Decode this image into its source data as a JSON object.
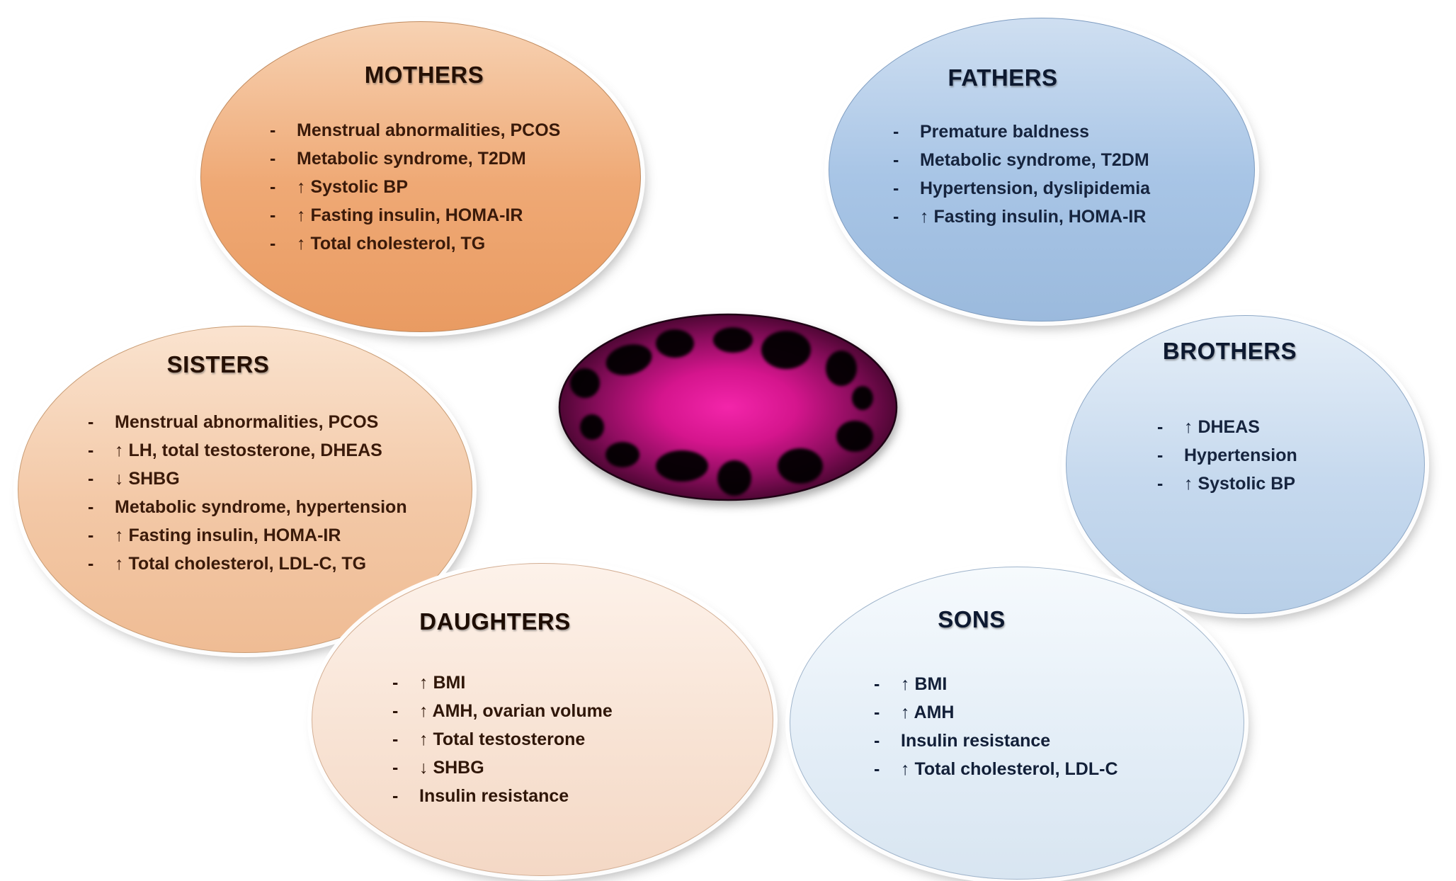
{
  "figure": {
    "kind": "family-phenotype-diagram",
    "subject": "PCOS familial traits",
    "center_icon": "polycystic-ovary"
  },
  "bullet_char": "-",
  "colors": {
    "mothers_fill": "#EFA975",
    "fathers_fill": "#A8C5E6",
    "sisters_fill": "#F3C8A6",
    "brothers_fill": "#C6D9EE",
    "daughters_fill": "#F8E3D4",
    "sons_fill": "#E4EEF7",
    "warm_text": "#3A1A0A",
    "cool_text": "#16243E",
    "ovary_center": "#ED1FA4",
    "ovary_edge": "#2B041D",
    "cyst_spot": "#050205",
    "background": "#FFFFFF"
  },
  "bubbles": {
    "mothers": {
      "title": "MOTHERS",
      "items": [
        "Menstrual abnormalities, PCOS",
        "Metabolic syndrome, T2DM",
        "↑ Systolic BP",
        "↑ Fasting insulin, HOMA-IR",
        "↑ Total cholesterol, TG"
      ]
    },
    "fathers": {
      "title": "FATHERS",
      "items": [
        "Premature baldness",
        "Metabolic syndrome, T2DM",
        "Hypertension, dyslipidemia",
        "↑ Fasting insulin, HOMA-IR"
      ]
    },
    "sisters": {
      "title": "SISTERS",
      "items": [
        "Menstrual abnormalities, PCOS",
        "↑ LH, total testosterone, DHEAS",
        "↓ SHBG",
        "Metabolic syndrome, hypertension",
        "↑ Fasting insulin, HOMA-IR",
        "↑ Total cholesterol, LDL-C, TG"
      ]
    },
    "brothers": {
      "title": "BROTHERS",
      "items": [
        "↑ DHEAS",
        "Hypertension",
        "↑ Systolic BP"
      ]
    },
    "daughters": {
      "title": "DAUGHTERS",
      "items": [
        "↑ BMI",
        "↑ AMH, ovarian volume",
        "↑ Total testosterone",
        "↓ SHBG",
        "Insulin resistance"
      ]
    },
    "sons": {
      "title": "SONS",
      "items": [
        "↑ BMI",
        "↑ AMH",
        "Insulin resistance",
        "↑ Total cholesterol, LDL-C"
      ]
    }
  }
}
